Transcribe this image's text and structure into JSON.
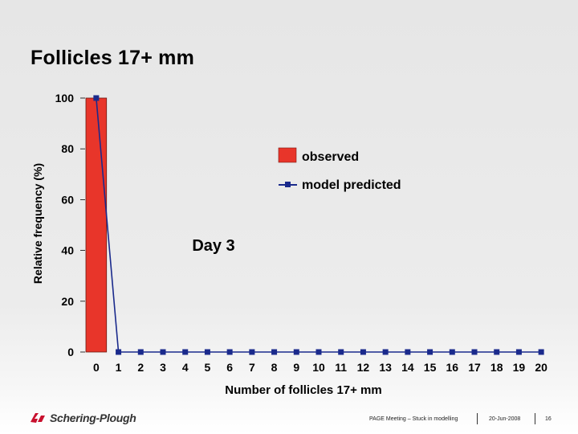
{
  "slide": {
    "title": "Follicles 17+ mm"
  },
  "chart_data": {
    "type": "bar",
    "ylabel": "Relative frequency (%)",
    "xlabel": "Number of follicles 17+ mm",
    "annotation": "Day 3",
    "ylim": [
      0,
      100
    ],
    "yticks": [
      0,
      20,
      40,
      60,
      80,
      100
    ],
    "categories": [
      "0",
      "1",
      "2",
      "3",
      "4",
      "5",
      "6",
      "7",
      "8",
      "9",
      "10",
      "11",
      "12",
      "13",
      "14",
      "15",
      "16",
      "17",
      "18",
      "19",
      "20"
    ],
    "series": [
      {
        "name": "observed",
        "kind": "bar",
        "color": "#e8352a",
        "values": [
          100,
          0,
          0,
          0,
          0,
          0,
          0,
          0,
          0,
          0,
          0,
          0,
          0,
          0,
          0,
          0,
          0,
          0,
          0,
          0,
          0
        ]
      },
      {
        "name": "model predicted",
        "kind": "line",
        "color": "#1a2a8c",
        "values": [
          100,
          0,
          0,
          0,
          0,
          0,
          0,
          0,
          0,
          0,
          0,
          0,
          0,
          0,
          0,
          0,
          0,
          0,
          0,
          0,
          0
        ]
      }
    ],
    "legend_position": "top-right",
    "grid": false
  },
  "footer": {
    "logo_text": "Schering-Plough",
    "meeting": "PAGE Meeting – Stuck in modelling",
    "date": "20-Jun-2008",
    "page": "16",
    "brand_color": "#c8102e"
  }
}
